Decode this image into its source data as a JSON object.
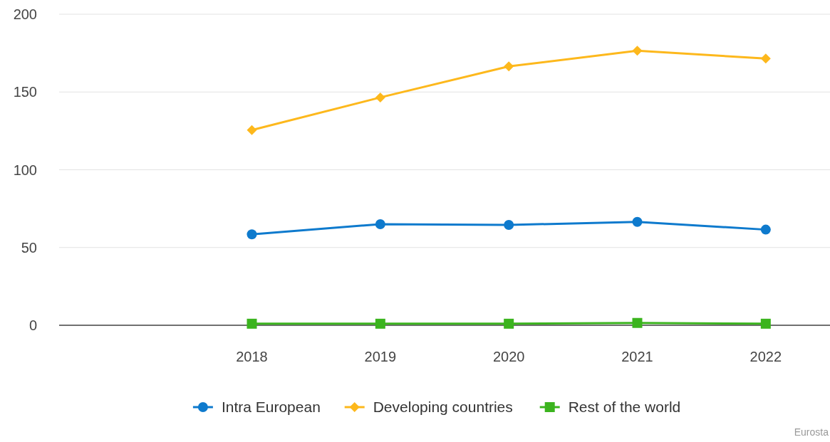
{
  "chart_data": {
    "type": "line",
    "x": [
      2018,
      2019,
      2020,
      2021,
      2022
    ],
    "xlim": [
      2016.5,
      2022.5
    ],
    "xticks": [
      2018,
      2019,
      2020,
      2021,
      2022
    ],
    "ylim": [
      0,
      200
    ],
    "yticks": [
      0,
      50,
      100,
      150,
      200
    ],
    "grid": "y",
    "legend": "bottom",
    "annotations": [
      "Eurosta"
    ],
    "series": [
      {
        "name": "Intra European",
        "color": "#0e7acd",
        "marker": "circle",
        "values": [
          58.5,
          65,
          64.5,
          66.5,
          61.5
        ]
      },
      {
        "name": "Developing countries",
        "color": "#fdb81c",
        "marker": "diamond",
        "values": [
          125.5,
          146.5,
          166.5,
          176.5,
          171.5
        ]
      },
      {
        "name": "Rest of the world",
        "color": "#3bb41e",
        "marker": "square",
        "values": [
          1,
          1,
          1,
          1.5,
          1
        ]
      }
    ]
  }
}
